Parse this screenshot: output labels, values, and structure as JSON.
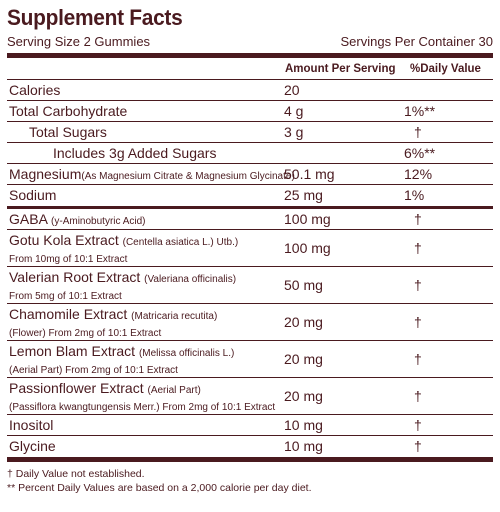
{
  "title": "Supplement Facts",
  "serving_size": "Serving Size 2 Gummies",
  "servings_per_container": "Servings Per Container 30",
  "header": {
    "amount": "Amount Per Serving",
    "dv": "%Daily Value"
  },
  "rows_a": [
    {
      "name": "Calories",
      "amount": "20",
      "dv": ""
    },
    {
      "name": "Total Carbohydrate",
      "amount": "4 g",
      "dv": "1%**"
    },
    {
      "name": "Total Sugars",
      "amount": "3 g",
      "dv": "†"
    },
    {
      "name": "Includes 3g Added Sugars",
      "amount": "",
      "dv": "6%**"
    }
  ],
  "magnesium": {
    "name": "Magnesium",
    "sub": "(As Magnesium Citrate & Magnesium Glycinate)",
    "amount": "50.1 mg",
    "dv": "12%"
  },
  "sodium": {
    "name": "Sodium",
    "amount": "25 mg",
    "dv": "1%"
  },
  "gaba": {
    "name": "GABA",
    "sub": "(y-Aminobutyric Acid)",
    "amount": "100 mg",
    "dv": "†"
  },
  "extracts": [
    {
      "name": "Gotu Kola Extract",
      "sub1": "(Centella asiatica L.) Utb.)",
      "sub2": "From 10mg of 10:1 Extract",
      "amount": "100 mg",
      "dv": "†"
    },
    {
      "name": "Valerian Root Extract",
      "sub1": "(Valeriana officinalis)",
      "sub2": "From 5mg of 10:1 Extract",
      "amount": "50 mg",
      "dv": "†"
    },
    {
      "name": "Chamomile Extract",
      "sub1": "(Matricaria recutita)",
      "sub2": "(Flower) From 2mg of 10:1 Extract",
      "amount": "20 mg",
      "dv": "†"
    },
    {
      "name": "Lemon Blam Extract",
      "sub1": "(Melissa officinalis L.)",
      "sub2": "(Aerial Part) From 2mg of 10:1 Extract",
      "amount": "20 mg",
      "dv": "†"
    },
    {
      "name": "Passionflower Extract",
      "sub1": "(Aerial Part)",
      "sub2": "(Passiflora kwangtungensis Merr.) From 2mg of 10:1 Extract",
      "amount": "20 mg",
      "dv": "†"
    }
  ],
  "inositol": {
    "name": "Inositol",
    "amount": "10 mg",
    "dv": "†"
  },
  "glycine": {
    "name": "Glycine",
    "amount": "10 mg",
    "dv": "†"
  },
  "footnotes": [
    "† Daily Value not established.",
    "** Percent Daily Values are based on a 2,000 calorie per day diet."
  ],
  "colors": {
    "ink": "#4a1a1f",
    "background": "#ffffff"
  }
}
